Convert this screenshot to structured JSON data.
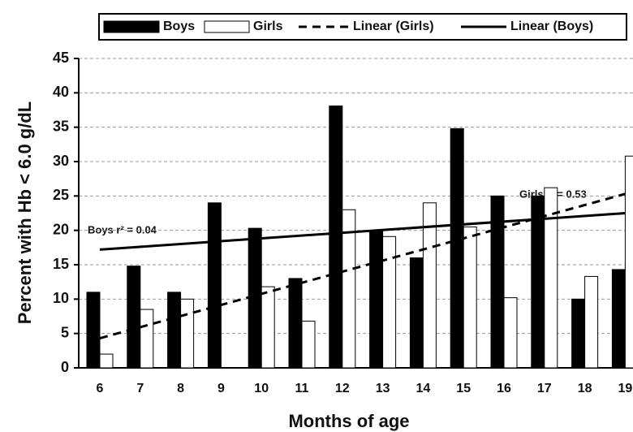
{
  "chart_data": {
    "type": "bar",
    "x_label": "Months of age",
    "y_label": "Percent with Hb < 6.0 g/dL",
    "x": [
      6,
      7,
      8,
      9,
      10,
      11,
      12,
      13,
      14,
      15,
      16,
      17,
      18,
      19
    ],
    "ylim": [
      0,
      45
    ],
    "yticks": [
      0,
      5,
      10,
      15,
      20,
      25,
      30,
      35,
      40,
      45
    ],
    "grid": true,
    "legend": "top",
    "series": [
      {
        "name": "Boys",
        "type": "bar",
        "color": "#000000",
        "values": [
          11,
          14.8,
          11,
          24,
          20.3,
          13,
          38.1,
          20,
          16,
          34.8,
          25,
          25,
          10,
          14.3
        ]
      },
      {
        "name": "Girls",
        "type": "bar",
        "color": "#ffffff",
        "values": [
          2,
          8.5,
          10,
          0,
          11.8,
          6.8,
          23,
          19.1,
          24,
          20.5,
          10.2,
          26.2,
          13.3,
          30.8
        ]
      },
      {
        "name": "Linear (Girls)",
        "type": "line",
        "style": "dashed",
        "color": "#000000",
        "x": [
          6,
          19
        ],
        "values": [
          4.3,
          25.3
        ]
      },
      {
        "name": "Linear (Boys)",
        "type": "line",
        "style": "solid",
        "color": "#000000",
        "x": [
          6,
          19
        ],
        "values": [
          17.2,
          22.5
        ]
      }
    ],
    "annotations": [
      "Boys r² = 0.04",
      "Girls r² = 0.53"
    ]
  }
}
